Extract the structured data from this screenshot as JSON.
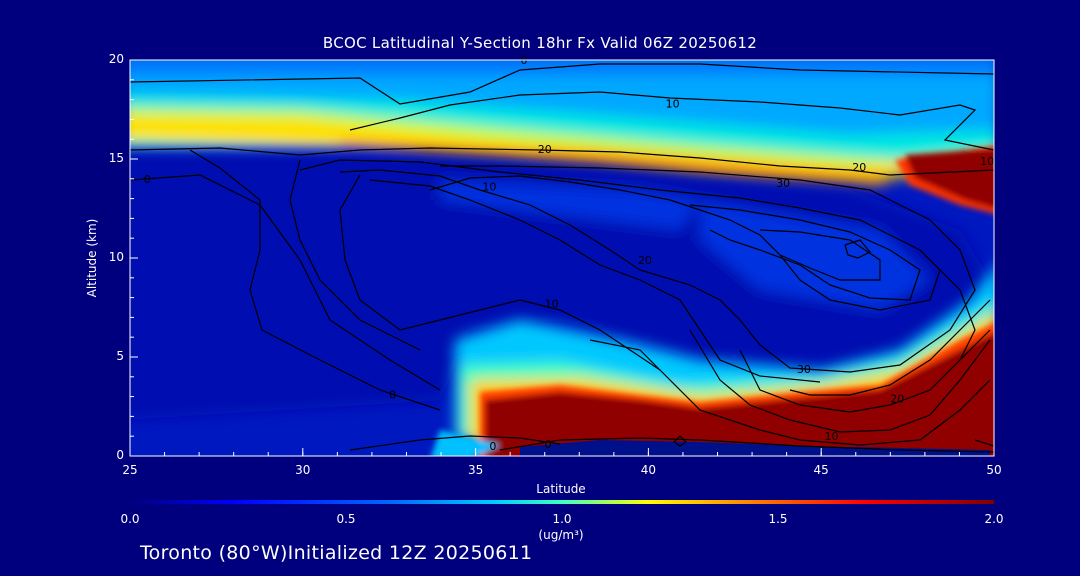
{
  "chart_data": {
    "type": "heatmap",
    "title": "BCOC Latitudinal Y-Section 18hr  Fx Valid 06Z 20250612",
    "xlabel": "Latitude",
    "ylabel": "Altitude (km)",
    "xlim": [
      25,
      50
    ],
    "ylim": [
      0,
      20
    ],
    "x_ticks": [
      "25",
      "30",
      "35",
      "40",
      "45",
      "50"
    ],
    "y_ticks": [
      "0",
      "5",
      "10",
      "15",
      "20"
    ],
    "colorbar": {
      "range": [
        0.0,
        2.0
      ],
      "ticks": [
        "0.0",
        "0.5",
        "1.0",
        "1.5",
        "2.0"
      ],
      "unit": "(ug/m³)",
      "colors": [
        "#00007f",
        "#0000ff",
        "#0080ff",
        "#00e0ff",
        "#ffff00",
        "#ff8000",
        "#ff0000",
        "#800000"
      ]
    },
    "contour_labels": [
      {
        "text": "0",
        "lat": 36.4,
        "alt": 20.0
      },
      {
        "text": "10",
        "lat": 40.7,
        "alt": 17.8
      },
      {
        "text": "20",
        "lat": 37.0,
        "alt": 15.5
      },
      {
        "text": "20",
        "lat": 46.1,
        "alt": 14.6
      },
      {
        "text": "10",
        "lat": 49.8,
        "alt": 14.9
      },
      {
        "text": "30",
        "lat": 43.9,
        "alt": 13.8
      },
      {
        "text": "10",
        "lat": 35.4,
        "alt": 13.6
      },
      {
        "text": "20",
        "lat": 39.9,
        "alt": 9.9
      },
      {
        "text": "10",
        "lat": 37.2,
        "alt": 7.7
      },
      {
        "text": "30",
        "lat": 44.5,
        "alt": 4.4
      },
      {
        "text": "20",
        "lat": 47.2,
        "alt": 2.9
      },
      {
        "text": "10",
        "lat": 45.3,
        "alt": 1.0
      },
      {
        "text": "0",
        "lat": 32.6,
        "alt": 3.1
      },
      {
        "text": "0",
        "lat": 35.5,
        "alt": 0.5
      },
      {
        "text": "0",
        "lat": 37.1,
        "alt": 0.6
      },
      {
        "text": "0",
        "lat": 25.5,
        "alt": 14.0
      }
    ],
    "grid": false,
    "legend": "colorbar-bottom"
  },
  "footer": "Toronto (80°W)Initialized 12Z 20250611"
}
